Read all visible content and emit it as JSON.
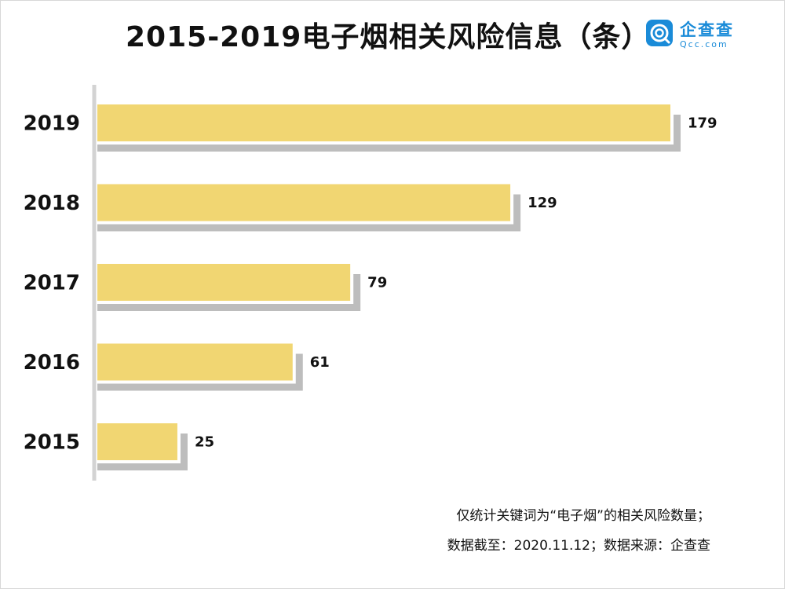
{
  "title": "2015-2019电子烟相关风险信息（条）",
  "logo": {
    "name": "企查查",
    "domain": "Qcc.com",
    "colors": {
      "brand": "#1a8bd8"
    }
  },
  "footnotes": [
    "仅统计关键词为“电子烟”的相关风险数量；",
    "数据截至：2020.11.12；数据来源：企查查"
  ],
  "colors": {
    "bar": "#f1d672",
    "shadow": "#bdbdbd",
    "axis": "#d3d3d3"
  },
  "chart_data": {
    "type": "bar",
    "orientation": "horizontal",
    "title": "2015-2019电子烟相关风险信息（条）",
    "categories": [
      "2019",
      "2018",
      "2017",
      "2016",
      "2015"
    ],
    "values": [
      179,
      129,
      79,
      61,
      25
    ],
    "data_labels": [
      "179",
      "129",
      "79",
      "61",
      "25"
    ],
    "xlim": [
      0,
      179
    ],
    "grid": false,
    "legend": "none"
  }
}
